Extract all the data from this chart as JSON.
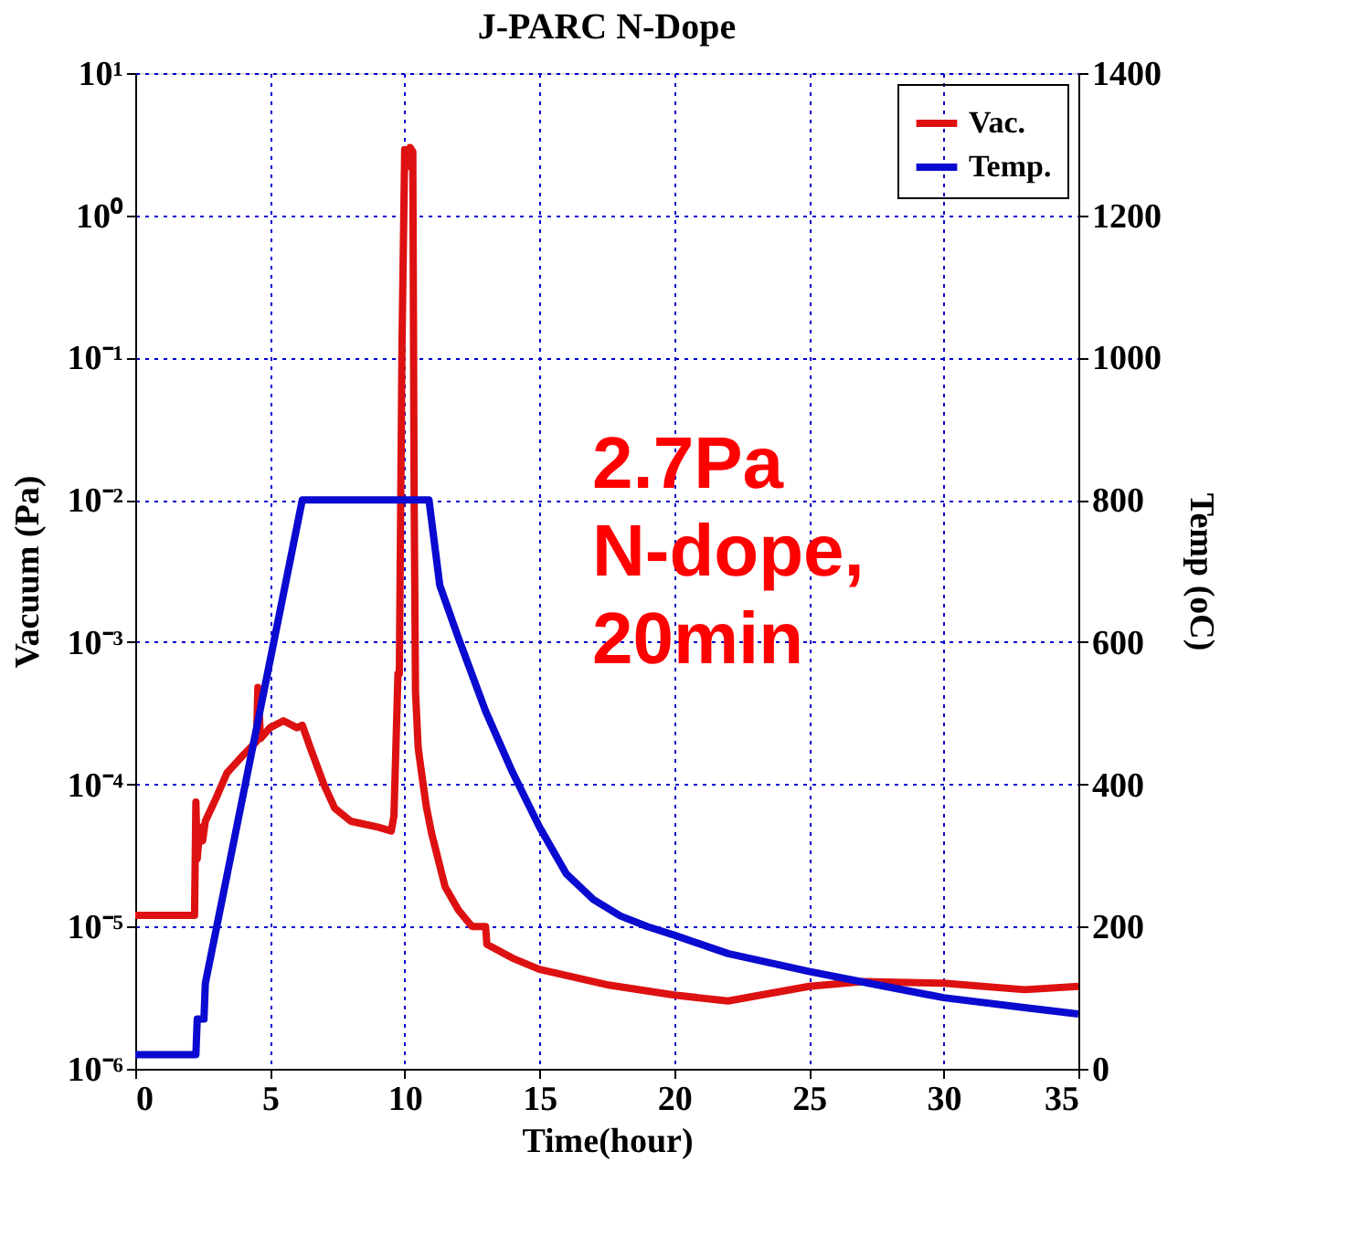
{
  "chart_data": {
    "type": "line",
    "title": "J-PARC N-Dope",
    "xlabel": "Time(hour)",
    "ylabel": "Vacuum (Pa)",
    "y2label": "Temp (oC)",
    "annotations": [
      "2.7Pa\nN-dope,\n20min"
    ],
    "xlim": [
      0,
      35
    ],
    "xticks": [
      0,
      5,
      10,
      15,
      20,
      25,
      30,
      35
    ],
    "ylim": [
      1e-06,
      10
    ],
    "yticks": [
      {
        "value": 1e-06,
        "label": "10⁻⁶"
      },
      {
        "value": 1e-05,
        "label": "10⁻⁵"
      },
      {
        "value": 0.0001,
        "label": "10⁻⁴"
      },
      {
        "value": 0.001,
        "label": "10⁻³"
      },
      {
        "value": 0.01,
        "label": "10⁻²"
      },
      {
        "value": 0.1,
        "label": "10⁻¹"
      },
      {
        "value": 1,
        "label": "10⁰"
      },
      {
        "value": 10,
        "label": "10¹"
      }
    ],
    "y2lim": [
      0,
      1400
    ],
    "y2ticks": [
      0,
      200,
      400,
      600,
      800,
      1000,
      1200,
      1400
    ],
    "log": "y",
    "grid": true,
    "legend": "top right",
    "marker": "none",
    "line_style": "solid",
    "series": [
      {
        "name": "Vac.",
        "color": "#dd1111",
        "x": [
          0,
          2.2,
          2.25,
          2.3,
          2.4,
          2.5,
          2.6,
          3.0,
          3.4,
          4.0,
          4.5,
          4.55,
          4.65,
          5.0,
          5.5,
          6.0,
          6.2,
          6.5,
          7.0,
          7.4,
          8.0,
          9.0,
          9.5,
          9.6,
          9.75,
          9.8,
          9.9,
          10.0,
          10.1,
          10.2,
          10.3,
          10.35,
          10.4,
          10.5,
          10.6,
          10.8,
          11.0,
          11.5,
          12.0,
          12.5,
          13.0,
          13.05,
          14.0,
          15.0,
          17.5,
          20.0,
          22.0,
          25.0,
          27.0,
          30.0,
          33.0,
          35.0
        ],
        "values": [
          1.2e-05,
          1.2e-05,
          7.5e-05,
          3e-05,
          5e-05,
          4e-05,
          5.5e-05,
          8e-05,
          0.00012,
          0.00016,
          0.0002,
          0.00048,
          0.00021,
          0.00025,
          0.00028,
          0.00025,
          0.00026,
          0.00018,
          0.0001,
          6.8e-05,
          5.5e-05,
          5e-05,
          4.7e-05,
          6e-05,
          0.0006,
          0.0006,
          0.13,
          2.9,
          2.2,
          3.0,
          2.8,
          0.01,
          0.00045,
          0.00018,
          0.00013,
          7e-05,
          4.5e-05,
          1.9e-05,
          1.3e-05,
          1e-05,
          1e-05,
          7.5e-06,
          6e-06,
          5e-06,
          3.9e-06,
          3.3e-06,
          3e-06,
          3.8e-06,
          4.1e-06,
          4e-06,
          3.6e-06,
          3.8e-06
        ]
      },
      {
        "name": "Temp.",
        "color": "#0a0ad0",
        "axis": "y2",
        "x": [
          0,
          2.25,
          2.3,
          2.55,
          2.6,
          6.2,
          10.9,
          11.3,
          12,
          13,
          14,
          15,
          16,
          17,
          18,
          19,
          20,
          22,
          25,
          27,
          30,
          33,
          35
        ],
        "values": [
          20,
          20,
          70,
          70,
          120,
          800,
          800,
          680,
          605,
          503,
          417,
          340,
          274,
          238,
          215,
          200,
          188,
          162,
          137,
          122,
          100,
          86,
          77
        ]
      }
    ]
  }
}
